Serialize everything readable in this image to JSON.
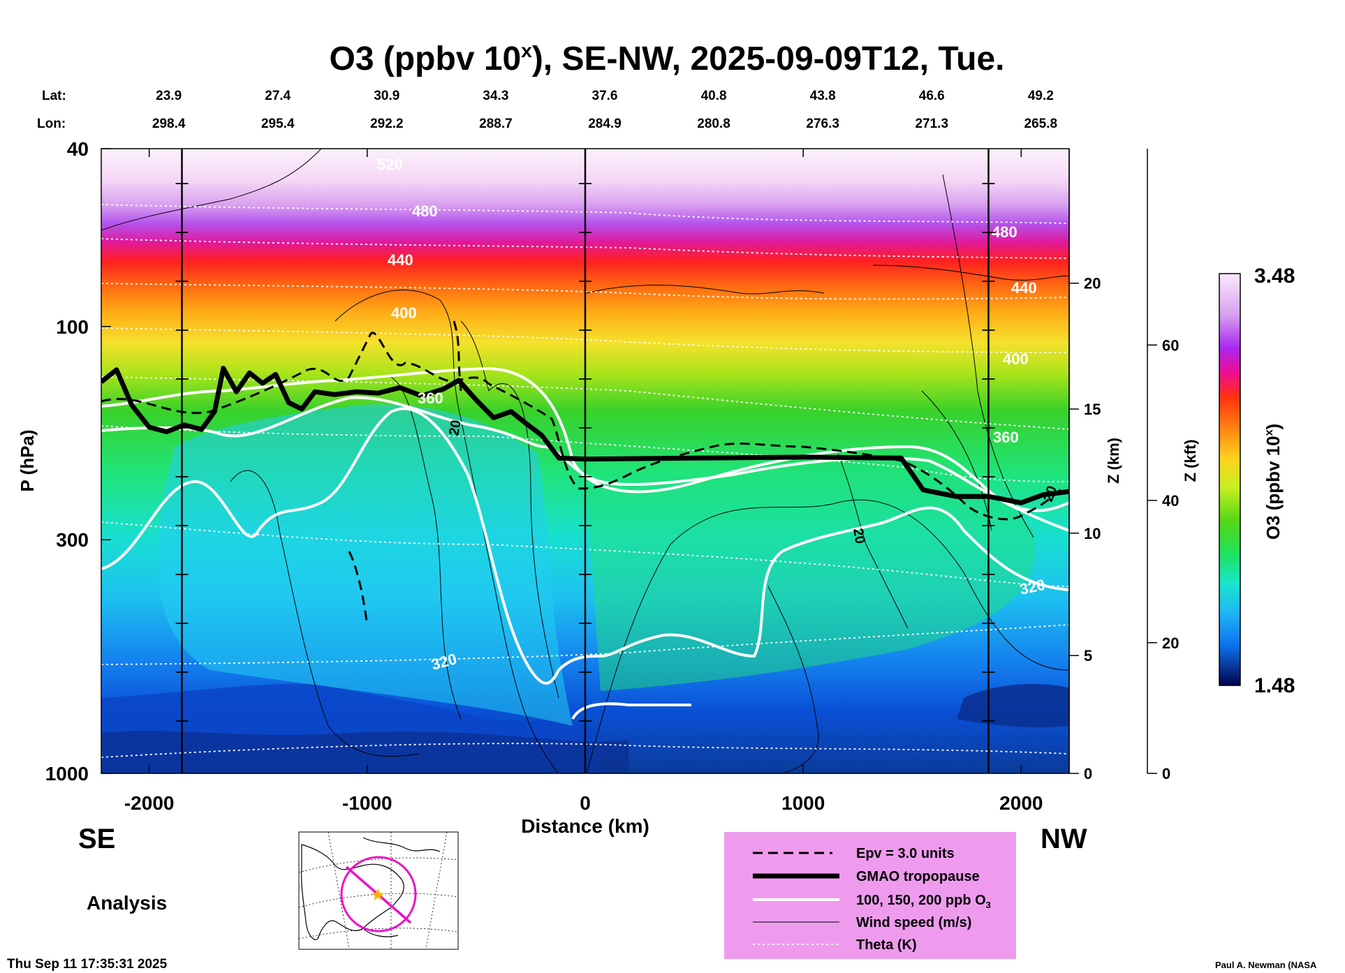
{
  "chart_data": {
    "type": "heatmap",
    "title": "O3 (ppbv 10",
    "title_sup": "x",
    "title_rest": "), SE-NW, 2025-09-09T12, Tue.",
    "xlabel": "Distance (km)",
    "ylabel": "P (hPa)",
    "xlim": [
      -2220,
      2220
    ],
    "ylim_pressure": [
      1000,
      40
    ],
    "x_ticks": [
      -2000,
      -1000,
      0,
      1000,
      2000
    ],
    "x_tick_labels": [
      "-2000",
      "-1000",
      "0",
      "1000",
      "2000"
    ],
    "y_ticks": [
      40,
      100,
      300,
      1000
    ],
    "y_tick_labels": [
      "40",
      "100",
      "300",
      "1000"
    ],
    "z_km_axis": {
      "label": "Z (km)",
      "ticks": [
        0,
        5,
        10,
        15,
        20
      ],
      "tick_labels": [
        "0",
        "5",
        "10",
        "15",
        "20"
      ],
      "tick_pressures": [
        1000,
        545,
        290,
        153,
        80
      ]
    },
    "z_kft_axis": {
      "label": "Z (kft)",
      "ticks": [
        0,
        20,
        40,
        60
      ],
      "tick_labels": [
        "0",
        "20",
        "40",
        "60"
      ],
      "tick_pressures": [
        1000,
        510,
        245,
        110
      ]
    },
    "lat_label": "Lat:",
    "lon_label": "Lon:",
    "lat_lon_ticks": [
      {
        "distance": -2000,
        "lat": "23.9",
        "lon": "298.4"
      },
      {
        "distance": -1500,
        "lat": "27.4",
        "lon": "295.4"
      },
      {
        "distance": -1000,
        "lat": "30.9",
        "lon": "292.2"
      },
      {
        "distance": -500,
        "lat": "34.3",
        "lon": "288.7"
      },
      {
        "distance": 0,
        "lat": "37.6",
        "lon": "284.9"
      },
      {
        "distance": 500,
        "lat": "40.8",
        "lon": "280.8"
      },
      {
        "distance": 1000,
        "lat": "43.8",
        "lon": "276.3"
      },
      {
        "distance": 1500,
        "lat": "46.6",
        "lon": "271.3"
      },
      {
        "distance": 2000,
        "lat": "49.2",
        "lon": "265.8"
      }
    ],
    "vertical_marker_distances": [
      -1850,
      0,
      1850
    ],
    "colorbar": {
      "label": "O3 (ppbv 10",
      "label_sup": "x",
      "label_close": ")",
      "min": 1.48,
      "max": 3.48,
      "min_label": "1.48",
      "max_label": "3.48",
      "colors": [
        "#00004e",
        "#003060",
        "#0a3da0",
        "#0050d8",
        "#0b74f0",
        "#1896f2",
        "#20b9f4",
        "#1ed7ec",
        "#18e6c8",
        "#1be69a",
        "#1fe25e",
        "#28d32a",
        "#55d814",
        "#8ee81a",
        "#c6ef22",
        "#f0f028",
        "#ffd21e",
        "#ffad15",
        "#ff8812",
        "#ff6010",
        "#ff3210",
        "#f2003a",
        "#ee0c95",
        "#cd10d8",
        "#a928f0",
        "#bc62f0",
        "#d8a0f0",
        "#eecbf4",
        "#f9eafb"
      ]
    },
    "theta_contour_labels": [
      "520",
      "480",
      "440",
      "400",
      "360",
      "320",
      "480",
      "440",
      "400",
      "360",
      "320"
    ],
    "wind_contour_labels": [
      "20",
      "20",
      "20"
    ],
    "tropopause_pressure": [
      {
        "x": -2220,
        "p": 133
      },
      {
        "x": -2150,
        "p": 125
      },
      {
        "x": -2080,
        "p": 150
      },
      {
        "x": -2000,
        "p": 168
      },
      {
        "x": -1920,
        "p": 172
      },
      {
        "x": -1840,
        "p": 166
      },
      {
        "x": -1760,
        "p": 170
      },
      {
        "x": -1700,
        "p": 155
      },
      {
        "x": -1660,
        "p": 124
      },
      {
        "x": -1600,
        "p": 140
      },
      {
        "x": -1540,
        "p": 127
      },
      {
        "x": -1480,
        "p": 134
      },
      {
        "x": -1420,
        "p": 128
      },
      {
        "x": -1360,
        "p": 148
      },
      {
        "x": -1300,
        "p": 153
      },
      {
        "x": -1240,
        "p": 140
      },
      {
        "x": -1150,
        "p": 142
      },
      {
        "x": -1050,
        "p": 140
      },
      {
        "x": -950,
        "p": 141
      },
      {
        "x": -850,
        "p": 137
      },
      {
        "x": -750,
        "p": 143
      },
      {
        "x": -650,
        "p": 138
      },
      {
        "x": -580,
        "p": 132
      },
      {
        "x": -500,
        "p": 146
      },
      {
        "x": -420,
        "p": 160
      },
      {
        "x": -340,
        "p": 155
      },
      {
        "x": -270,
        "p": 165
      },
      {
        "x": -200,
        "p": 175
      },
      {
        "x": -120,
        "p": 197
      },
      {
        "x": 0,
        "p": 198
      },
      {
        "x": 500,
        "p": 197
      },
      {
        "x": 1000,
        "p": 196
      },
      {
        "x": 1450,
        "p": 197
      },
      {
        "x": 1550,
        "p": 232
      },
      {
        "x": 1700,
        "p": 240
      },
      {
        "x": 1850,
        "p": 240
      },
      {
        "x": 2000,
        "p": 248
      },
      {
        "x": 2100,
        "p": 238
      },
      {
        "x": 2220,
        "p": 234
      }
    ],
    "legend": [
      {
        "style": "dashed",
        "label": "Epv = 3.0 units"
      },
      {
        "style": "thick",
        "label": "GMAO tropopause"
      },
      {
        "style": "white",
        "label": "100, 150, 200 ppb O",
        "sub": "3"
      },
      {
        "style": "thin",
        "label": "Wind speed (m/s)"
      },
      {
        "style": "dotted",
        "label": "Theta (K)"
      }
    ],
    "direction_left": "SE",
    "direction_right": "NW",
    "mode_label": "Analysis",
    "timestamp": "Thu Sep 11 17:35:31 2025",
    "credit": "Paul A. Newman (NASA"
  }
}
